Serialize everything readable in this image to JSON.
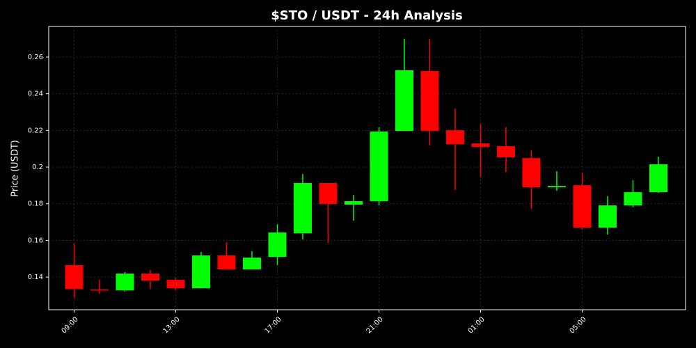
{
  "chart_data": {
    "type": "candlestick",
    "title": "$STO / USDT - 24h Analysis",
    "y_label": "Price (USDT)",
    "categories": [
      "09:00",
      null,
      null,
      null,
      "13:00",
      null,
      null,
      null,
      "17:00",
      null,
      null,
      null,
      "21:00",
      null,
      null,
      null,
      "01:00",
      null,
      null,
      null,
      "05:00",
      null,
      null,
      null
    ],
    "series": [
      {
        "open": [
          0.1465,
          0.1333,
          0.1328,
          0.1419,
          0.1385,
          0.1339,
          0.1518,
          0.1442,
          0.151,
          0.1639,
          0.1913,
          0.1795,
          0.1814,
          0.2197,
          0.2524,
          0.2201,
          0.2129,
          0.2114,
          0.2049,
          0.189,
          0.1901,
          0.167,
          0.1791,
          0.1863
        ],
        "high": [
          0.1582,
          0.1385,
          0.1427,
          0.1438,
          0.1396,
          0.1537,
          0.159,
          0.1541,
          0.1689,
          0.1962,
          0.1913,
          0.1848,
          0.2217,
          0.2699,
          0.2699,
          0.2319,
          0.2235,
          0.2217,
          0.2091,
          0.1977,
          0.197,
          0.1841,
          0.1928,
          0.2057
        ],
        "low": [
          0.1286,
          0.1309,
          0.132,
          0.1335,
          0.1328,
          0.1339,
          0.1442,
          0.1442,
          0.1465,
          0.1605,
          0.1586,
          0.1708,
          0.1791,
          0.2197,
          0.2118,
          0.1875,
          0.1947,
          0.1973,
          0.1772,
          0.1871,
          0.1658,
          0.1632,
          0.178,
          0.186
        ],
        "close": [
          0.1335,
          0.1327,
          0.1419,
          0.1381,
          0.1339,
          0.1518,
          0.1442,
          0.1506,
          0.1643,
          0.1913,
          0.1799,
          0.1814,
          0.2194,
          0.2528,
          0.2197,
          0.2125,
          0.211,
          0.2053,
          0.189,
          0.1897,
          0.167,
          0.1791,
          0.1863,
          0.2015
        ]
      }
    ],
    "up_color": "#00ff00",
    "down_color": "#ff0000",
    "ylim": [
      0.1222,
      0.2767
    ],
    "yticks": [
      0.14,
      0.16,
      0.18,
      0.2,
      0.22,
      0.24,
      0.26
    ],
    "grid": true
  }
}
